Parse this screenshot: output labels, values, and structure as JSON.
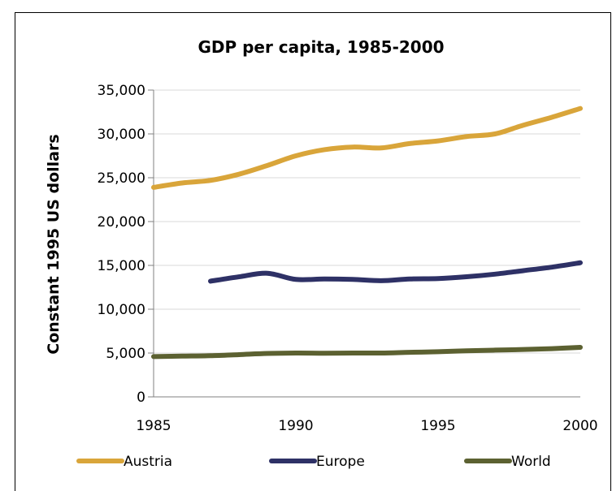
{
  "chart_data": {
    "type": "line",
    "title": "GDP per capita, 1985-2000",
    "xlabel": "",
    "ylabel": "Constant 1995 US dollars",
    "xlim": [
      1985,
      2000
    ],
    "ylim": [
      0,
      35000
    ],
    "x_ticks": [
      "1985",
      "1990",
      "1995",
      "2000"
    ],
    "y_ticks": [
      "0",
      "5,000",
      "10,000",
      "15,000",
      "20,000",
      "25,000",
      "30,000",
      "35,000"
    ],
    "x": [
      1985,
      1986,
      1987,
      1988,
      1989,
      1990,
      1991,
      1992,
      1993,
      1994,
      1995,
      1996,
      1997,
      1998,
      1999,
      2000
    ],
    "series": [
      {
        "name": "Austria",
        "color": "#D9A53A",
        "values": [
          23900,
          24400,
          24700,
          25400,
          26400,
          27500,
          28200,
          28500,
          28400,
          28900,
          29200,
          29700,
          30000,
          31000,
          31900,
          32900
        ]
      },
      {
        "name": "Europe",
        "color": "#2E3166",
        "values": [
          null,
          null,
          13200,
          13700,
          14100,
          13400,
          13450,
          13400,
          13250,
          13450,
          13500,
          13700,
          14000,
          14400,
          14800,
          15300
        ]
      },
      {
        "name": "World",
        "color": "#5C6131",
        "values": [
          4600,
          4650,
          4700,
          4820,
          4950,
          5000,
          4980,
          5000,
          5000,
          5080,
          5150,
          5250,
          5330,
          5400,
          5500,
          5650
        ]
      }
    ],
    "grid": "horizontal",
    "legend": "bottom"
  }
}
